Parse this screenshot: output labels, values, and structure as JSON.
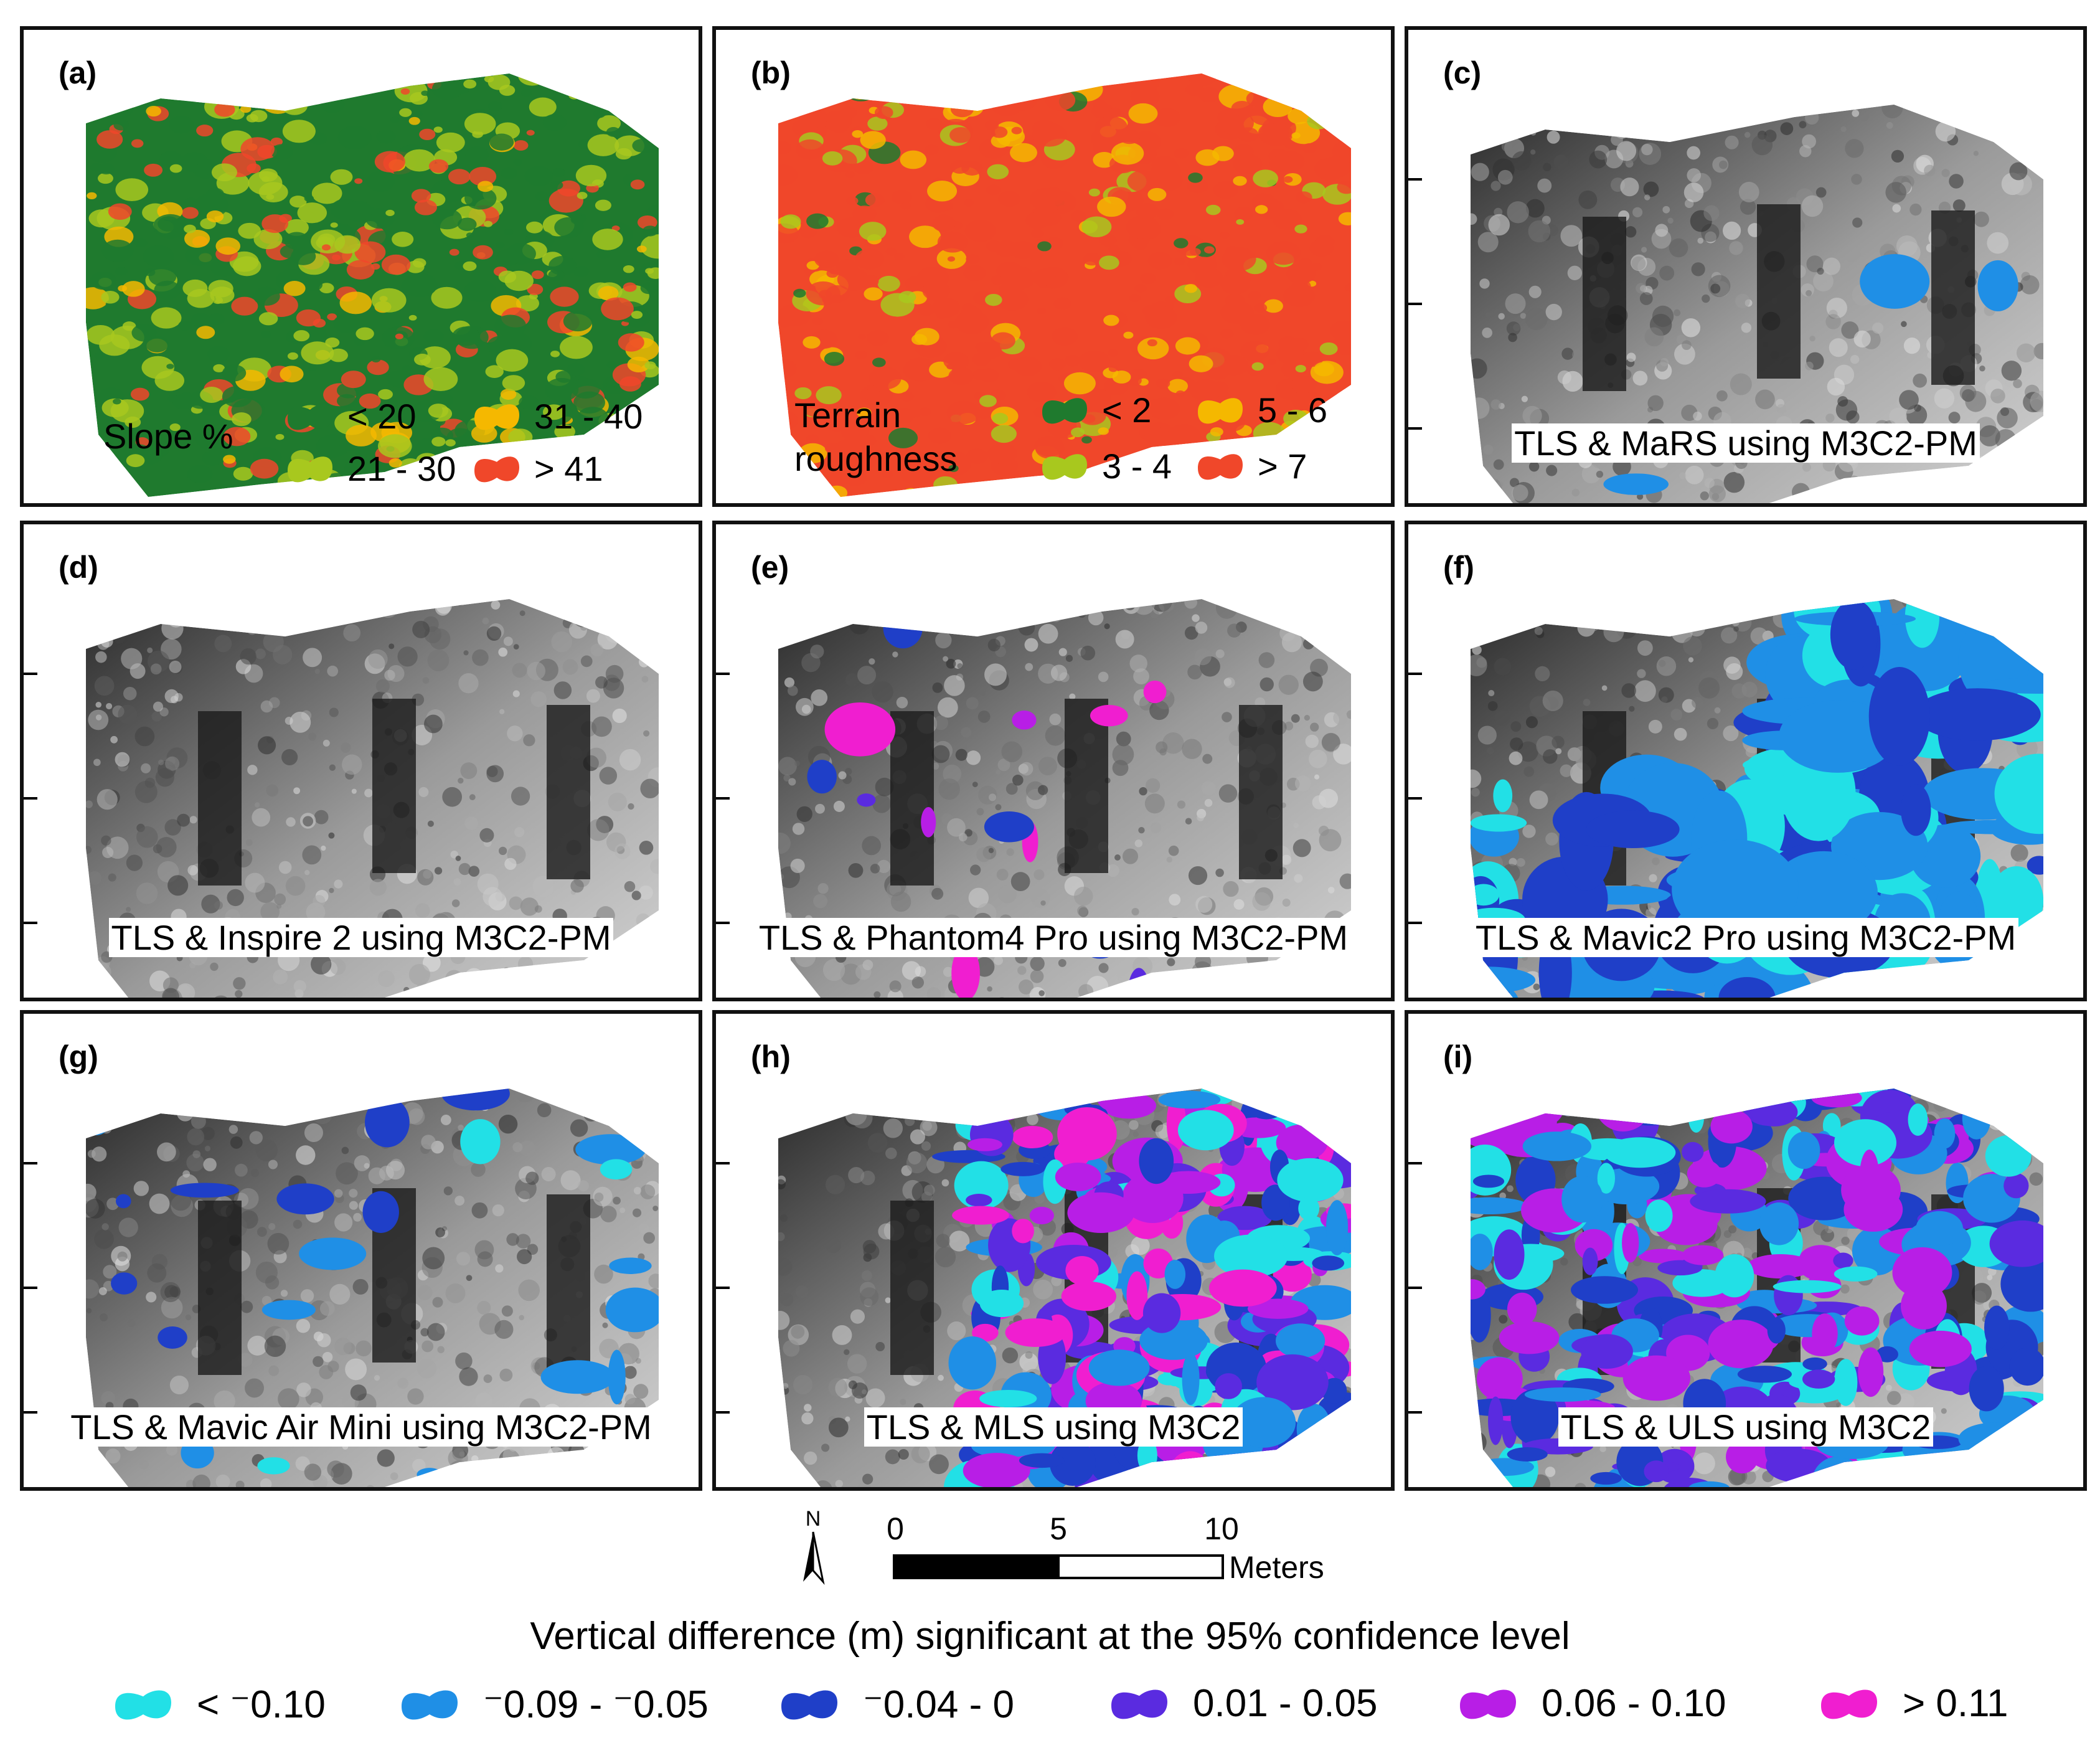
{
  "panels": [
    {
      "id": "a",
      "tag": "(a)",
      "caption": "",
      "type": "slope"
    },
    {
      "id": "b",
      "tag": "(b)",
      "caption": "",
      "type": "rough"
    },
    {
      "id": "c",
      "tag": "(c)",
      "caption": "TLS & MaRS using M3C2-PM",
      "type": "grey"
    },
    {
      "id": "d",
      "tag": "(d)",
      "caption": "TLS & Inspire 2 using M3C2-PM",
      "type": "grey"
    },
    {
      "id": "e",
      "tag": "(e)",
      "caption": "TLS & Phantom4 Pro using M3C2-PM",
      "type": "grey"
    },
    {
      "id": "f",
      "tag": "(f)",
      "caption": "TLS & Mavic2 Pro using M3C2-PM",
      "type": "grey"
    },
    {
      "id": "g",
      "tag": "(g)",
      "caption": "TLS & Mavic Air Mini using M3C2-PM",
      "type": "grey"
    },
    {
      "id": "h",
      "tag": "(h)",
      "caption": "TLS & MLS using M3C2",
      "type": "grey"
    },
    {
      "id": "i",
      "tag": "(i)",
      "caption": "TLS & ULS using M3C2",
      "type": "grey"
    }
  ],
  "slope_legend": {
    "title": "Slope %",
    "items": [
      {
        "label": "< 20",
        "color": "#1f7a2e"
      },
      {
        "label": "31 - 40",
        "color": "#f5b800"
      },
      {
        "label": "21 - 30",
        "color": "#a8c81e"
      },
      {
        "label": "> 41",
        "color": "#f0472a"
      }
    ]
  },
  "rough_legend": {
    "title_line1": "Terrain",
    "title_line2": "roughness",
    "items": [
      {
        "label": "< 2",
        "color": "#1f7a2e"
      },
      {
        "label": "5 - 6",
        "color": "#f5b800"
      },
      {
        "label": "3 - 4",
        "color": "#a8c81e"
      },
      {
        "label": "> 7",
        "color": "#f0472a"
      }
    ]
  },
  "scale": {
    "north": "N",
    "ticks": [
      "0",
      "5",
      "10"
    ],
    "unit": "Meters"
  },
  "diff_legend": {
    "title": "Vertical difference (m) significant at the 95% confidence level",
    "items": [
      {
        "label": "< ⁻0.10",
        "color": "#22e0e6"
      },
      {
        "label": "⁻0.09 - ⁻0.05",
        "color": "#1f8fe6"
      },
      {
        "label": "⁻0.04 - 0",
        "color": "#1f3fc8"
      },
      {
        "label": "0.01 - 0.05",
        "color": "#5a2be0"
      },
      {
        "label": "0.06 - 0.10",
        "color": "#b81ee6"
      },
      {
        "label": "> 0.11",
        "color": "#f01ed0"
      }
    ]
  }
}
